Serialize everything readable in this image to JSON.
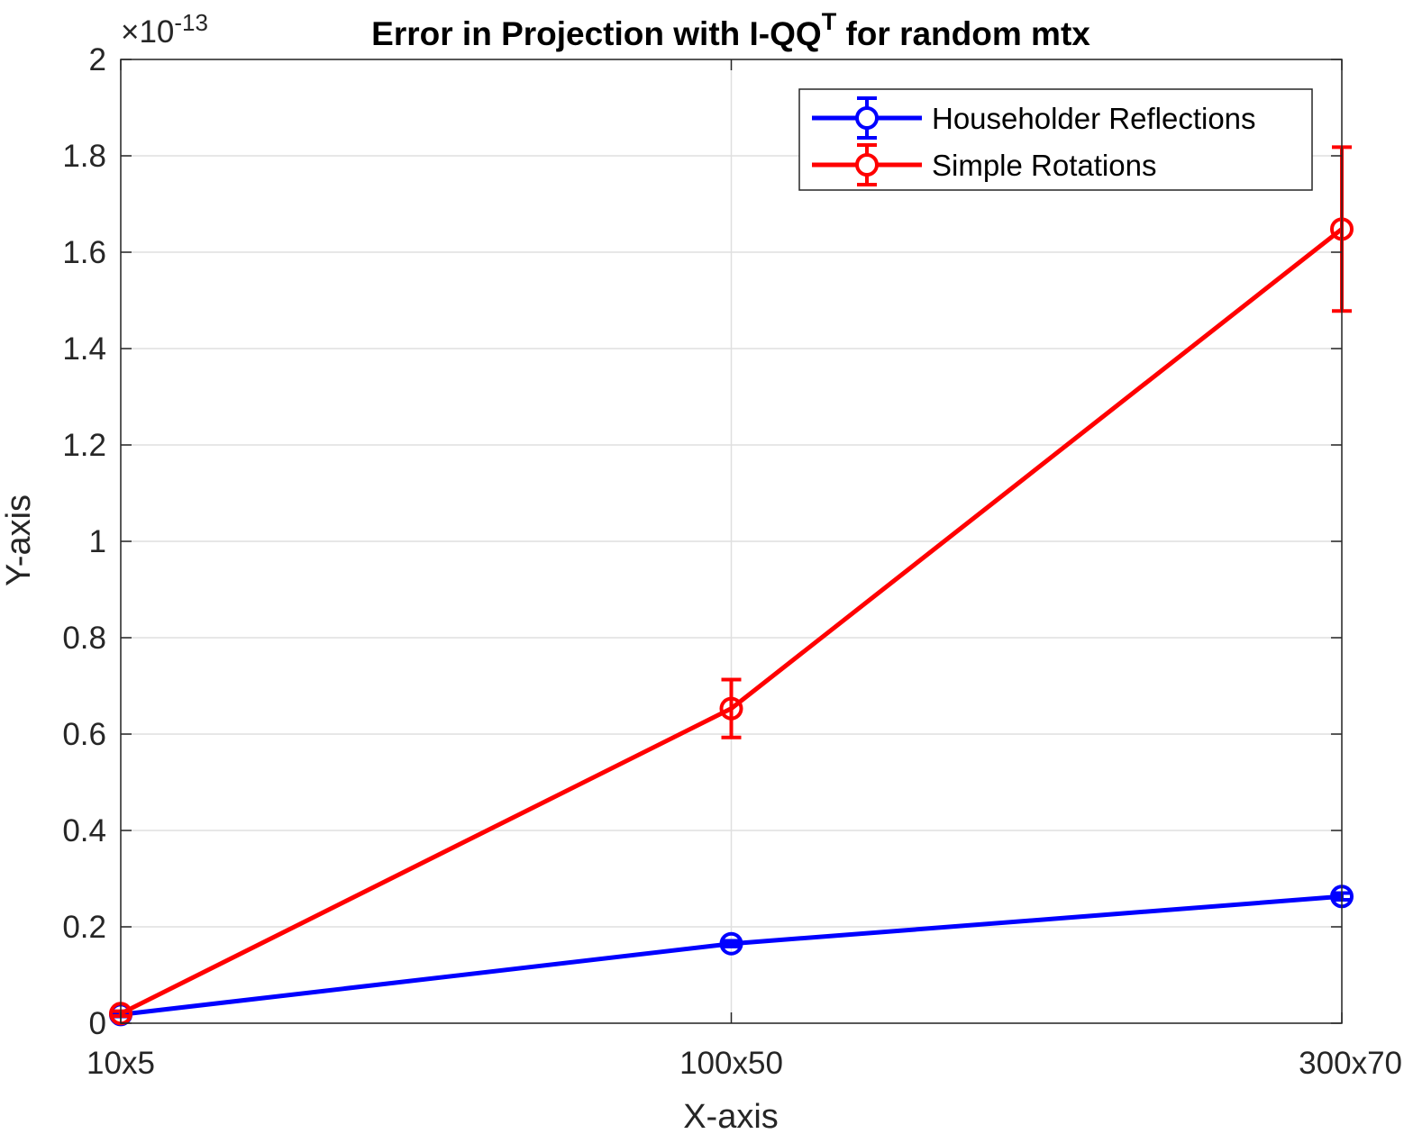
{
  "chart_data": {
    "type": "line",
    "title": "Error in Projection with I-QQ",
    "title_superscript": "T",
    "title_suffix": " for random mtx",
    "xlabel": "X-axis",
    "ylabel": "Y-axis",
    "categories": [
      "10x5",
      "100x50",
      "300x70"
    ],
    "y_multiplier_base": "×10",
    "y_multiplier_exponent": "-13",
    "ylim": [
      0,
      2
    ],
    "y_ticks": [
      0,
      0.2,
      0.4,
      0.6,
      0.8,
      1,
      1.2,
      1.4,
      1.6,
      1.8,
      2
    ],
    "y_tick_labels": [
      "0",
      "0.2",
      "0.4",
      "0.6",
      "0.8",
      "1",
      "1.2",
      "1.4",
      "1.6",
      "1.8",
      "2"
    ],
    "grid": true,
    "legend_position": "top-right",
    "series": [
      {
        "name": "Householder Reflections",
        "color": "#0000ff",
        "marker": "circle",
        "values": [
          0.018,
          0.165,
          0.263
        ],
        "error": [
          0.004,
          0.006,
          0.007
        ]
      },
      {
        "name": "Simple Rotations",
        "color": "#ff0000",
        "marker": "circle",
        "values": [
          0.02,
          0.653,
          1.648
        ],
        "error": [
          0.005,
          0.06,
          0.17
        ]
      }
    ]
  }
}
